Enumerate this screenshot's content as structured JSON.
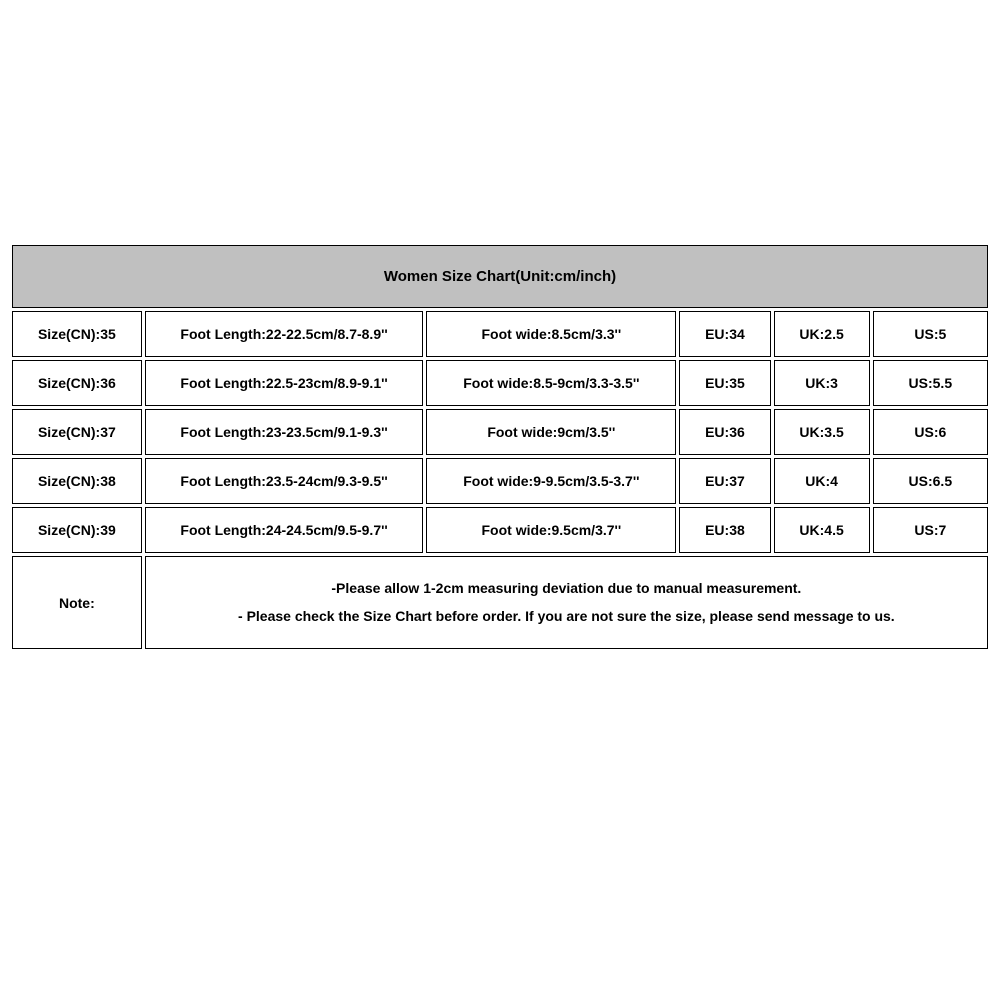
{
  "table": {
    "header": "Women Size Chart(Unit:cm/inch)",
    "header_bg": "#c0c0c0",
    "border_color": "#000000",
    "text_color": "#000000",
    "font_family": "Arial",
    "header_fontsize": 15,
    "cell_fontsize": 14,
    "col_widths_pct": [
      13.5,
      29,
      26,
      9.5,
      10,
      12
    ],
    "rows": [
      {
        "size": "Size(CN):35",
        "length": "Foot Length:22-22.5cm/8.7-8.9''",
        "wide": "Foot wide:8.5cm/3.3''",
        "eu": "EU:34",
        "uk": "UK:2.5",
        "us": "US:5"
      },
      {
        "size": "Size(CN):36",
        "length": "Foot Length:22.5-23cm/8.9-9.1''",
        "wide": "Foot wide:8.5-9cm/3.3-3.5''",
        "eu": "EU:35",
        "uk": "UK:3",
        "us": "US:5.5"
      },
      {
        "size": "Size(CN):37",
        "length": "Foot Length:23-23.5cm/9.1-9.3''",
        "wide": "Foot wide:9cm/3.5''",
        "eu": "EU:36",
        "uk": "UK:3.5",
        "us": "US:6"
      },
      {
        "size": "Size(CN):38",
        "length": "Foot Length:23.5-24cm/9.3-9.5''",
        "wide": "Foot wide:9-9.5cm/3.5-3.7''",
        "eu": "EU:37",
        "uk": "UK:4",
        "us": "US:6.5"
      },
      {
        "size": "Size(CN):39",
        "length": "Foot Length:24-24.5cm/9.5-9.7''",
        "wide": "Foot wide:9.5cm/3.7''",
        "eu": "EU:38",
        "uk": "UK:4.5",
        "us": "US:7"
      }
    ],
    "note_label": "Note:",
    "note_line1": "-Please allow 1-2cm measuring deviation due to manual measurement.",
    "note_line2": "- Please check the Size Chart before order. If you are not sure the size, please send message to us."
  }
}
